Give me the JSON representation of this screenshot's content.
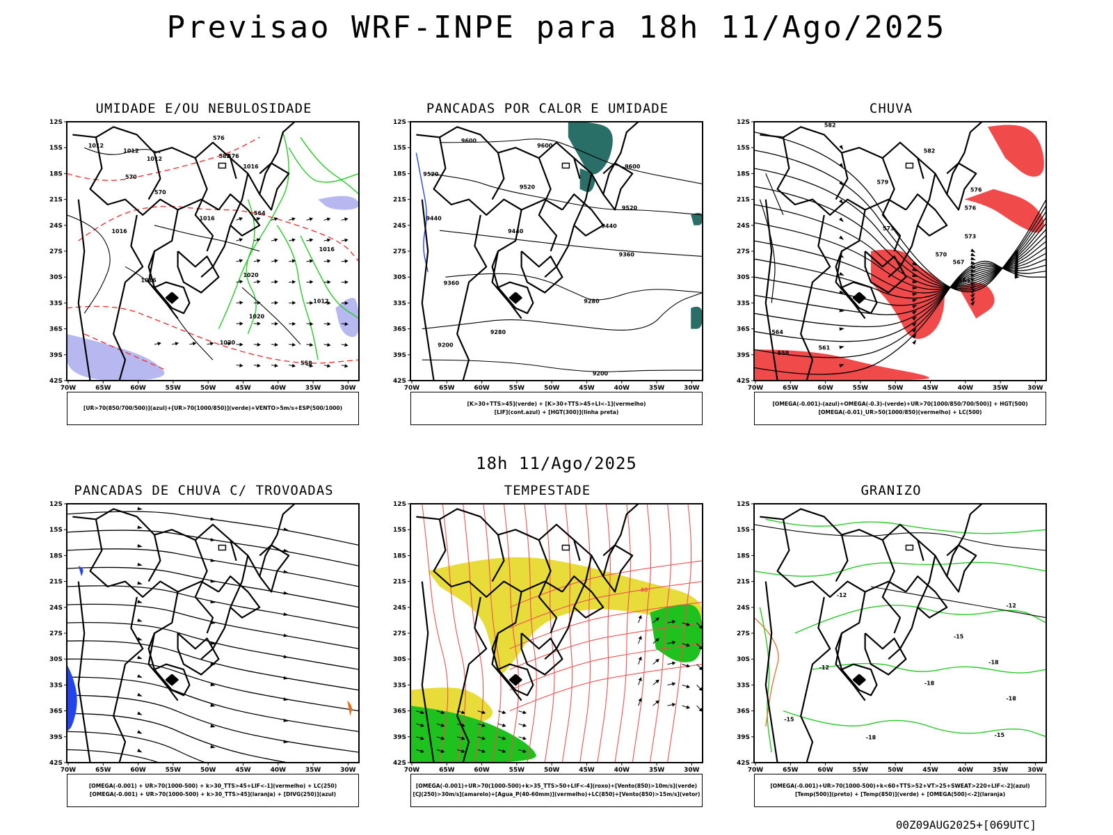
{
  "main_title": "Previsao WRF-INPE  para 18h 11/Ago/2025",
  "mid_title": "18h 11/Ago/2025",
  "footer_code": "00Z09AUG2025+[069UTC]",
  "lat_ticks": [
    "12S",
    "15S",
    "18S",
    "21S",
    "24S",
    "27S",
    "30S",
    "33S",
    "36S",
    "39S",
    "42S"
  ],
  "lon_ticks": [
    "70W",
    "65W",
    "60W",
    "55W",
    "50W",
    "45W",
    "40W",
    "35W",
    "30W"
  ],
  "colors": {
    "humidity_blue": "#b0b0f0",
    "humidity_green": "#22cc22",
    "red_contour": "#ee3333",
    "teal_fill": "#2a6e68",
    "yellow_fill": "#e8dc3a",
    "green_fill": "#1fc11f",
    "orange": "#e07020",
    "blue": "#2244ee"
  },
  "panels": [
    {
      "title": "UMIDADE E/OU NEBULOSIDADE",
      "legend": [
        "[UR>70(850/700/500)](azul)+[UR>70(1000/850)](verde)+VENTO>5m/s+ESP(500/1000)"
      ],
      "contour_labels": [
        "1012",
        "1012",
        "1012",
        "1016",
        "1016",
        "1016",
        "1016",
        "1020",
        "1020",
        "1020",
        "1016",
        "1012",
        "576",
        "576",
        "570",
        "570",
        "564",
        "558",
        "582"
      ]
    },
    {
      "title": "PANCADAS POR CALOR E UMIDADE",
      "legend": [
        "[K>30+TTS>45](verde) + [K>30+TTS>45+LI<-1](vermelho)",
        "[LIF](cont.azul) + [HGT(300)](linha preta)"
      ],
      "contour_labels": [
        "9600",
        "9600",
        "9600",
        "9520",
        "9520",
        "9520",
        "9440",
        "9440",
        "9440",
        "9360",
        "9360",
        "9280",
        "9280",
        "9200",
        "9200"
      ]
    },
    {
      "title": "CHUVA",
      "legend": [
        "[OMEGA(-0.001)-(azul)+OMEGA(-0.3)-(verde)+UR>70(1000/850/700/500)] + HGT(500)",
        "[OMEGA(-0.01)_UR>50(1000/850)(vermelho) + LC(500)"
      ],
      "contour_labels": [
        "582",
        "582",
        "579",
        "576",
        "576",
        "573",
        "573",
        "570",
        "567",
        "564",
        "564",
        "561",
        "558"
      ]
    },
    {
      "title": "PANCADAS DE CHUVA C/ TROVOADAS",
      "legend": [
        "[OMEGA(-0.001) + UR>70(1000-500) + k>30_TTS>45+LIF<-1](vermelho) + LC(250)",
        "[OMEGA(-0.001) + UR>70(1000-500) + k>30_TTS>45](laranja) + [DIVG(250)](azul)"
      ],
      "contour_labels": []
    },
    {
      "title": "TEMPESTADE",
      "legend": [
        "[OMEGA(-0.001)+UR>70(1000-500)+k>35_TTS>50+LIF<-4](roxo)+[Vento(850)>10m/s](verde)",
        "[CJ(250)>30m/s](amarelo)+[Agua_P(40-60mm)](vermelho)+LC(850)+[Vento(850)>15m/s](vetor)"
      ],
      "contour_labels": [
        "40"
      ]
    },
    {
      "title": "GRANIZO",
      "legend": [
        "[OMEGA(-0.001)+UR>70(1000-500)+k<60+TTS>52+VT>25+SWEAT>220+LIF<-2](azul)",
        "[Temp(500)](preto) + [Temp(850)](verde) + [OMEGA(500)<-2](laranja)"
      ],
      "contour_labels": [
        "-12",
        "-12",
        "-15",
        "-15",
        "-18",
        "-18",
        "-18",
        "-15",
        "-18",
        "-12"
      ]
    }
  ]
}
